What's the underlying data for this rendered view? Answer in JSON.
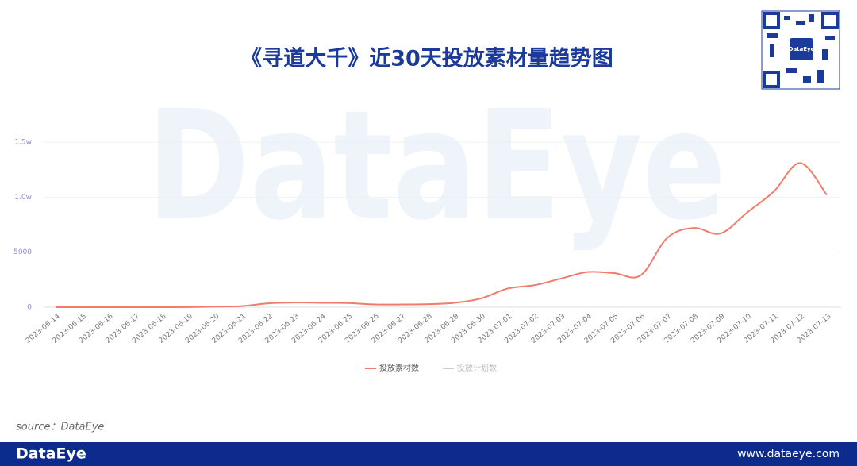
{
  "chart_data": {
    "type": "line",
    "title": "《寻道大千》近30天投放素材量趋势图",
    "categories": [
      "2023-06-14",
      "2023-06-15",
      "2023-06-16",
      "2023-06-17",
      "2023-06-18",
      "2023-06-19",
      "2023-06-20",
      "2023-06-21",
      "2023-06-22",
      "2023-06-23",
      "2023-06-24",
      "2023-06-25",
      "2023-06-26",
      "2023-06-27",
      "2023-06-28",
      "2023-06-29",
      "2023-06-30",
      "2023-07-01",
      "2023-07-02",
      "2023-07-03",
      "2023-07-04",
      "2023-07-05",
      "2023-07-06",
      "2023-07-07",
      "2023-07-08",
      "2023-07-09",
      "2023-07-10",
      "2023-07-11",
      "2023-07-12",
      "2023-07-13"
    ],
    "series": [
      {
        "name": "投放素材数",
        "color": "#f07c6c",
        "values": [
          0,
          0,
          0,
          0,
          0,
          10,
          50,
          100,
          350,
          420,
          400,
          380,
          250,
          250,
          280,
          400,
          800,
          1700,
          2000,
          2600,
          3200,
          3100,
          2900,
          6300,
          7200,
          6700,
          8600,
          10500,
          13100,
          10200
        ]
      },
      {
        "name": "投放计划数",
        "color": "#cccccc",
        "values": [
          null,
          null,
          null,
          null,
          null,
          null,
          null,
          null,
          null,
          null,
          null,
          null,
          null,
          null,
          null,
          null,
          null,
          null,
          null,
          null,
          null,
          null,
          null,
          null,
          null,
          null,
          null,
          null,
          null,
          null
        ]
      }
    ],
    "ylim": [
      0,
      15000
    ],
    "yticks": [
      0,
      5000,
      {
        "value": 10000,
        "label": "1.0w"
      },
      {
        "value": 15000,
        "label": "1.5w"
      }
    ],
    "grid": true,
    "legend": "bottom"
  },
  "page": {
    "source": "source：DataEye",
    "watermark": "DataEye",
    "qr_label": "DataEye",
    "footer_brand": "DataEye",
    "footer_url": "www.dataeye.com"
  }
}
